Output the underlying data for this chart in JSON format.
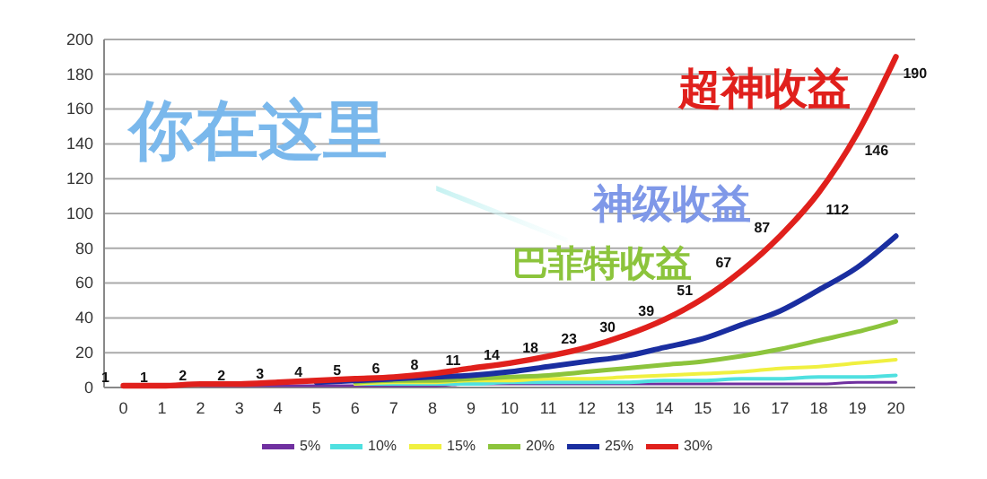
{
  "chart_data": {
    "type": "line",
    "x": [
      0,
      1,
      2,
      3,
      4,
      5,
      6,
      7,
      8,
      9,
      10,
      11,
      12,
      13,
      14,
      15,
      16,
      17,
      18,
      19,
      20
    ],
    "xlim": [
      -0.5,
      20.5
    ],
    "xticks": [
      0,
      1,
      2,
      3,
      4,
      5,
      6,
      7,
      8,
      9,
      10,
      11,
      12,
      13,
      14,
      15,
      16,
      17,
      18,
      19,
      20
    ],
    "ylim": [
      0,
      200
    ],
    "yticks": [
      0,
      20,
      40,
      60,
      80,
      100,
      120,
      140,
      160,
      180,
      200
    ],
    "grid": "y",
    "legend": "bottom",
    "marker": "none",
    "line_style": "solid",
    "series": [
      {
        "name": "5%",
        "color": "#7030a0",
        "values": [
          null,
          null,
          1,
          1,
          1,
          1,
          1,
          1,
          1,
          2,
          2,
          2,
          2,
          2,
          2,
          2,
          2,
          2,
          2,
          3,
          3
        ]
      },
      {
        "name": "10%",
        "color": "#4fe0e0",
        "values": [
          null,
          null,
          null,
          null,
          null,
          null,
          2,
          2,
          2,
          2,
          3,
          3,
          3,
          3,
          4,
          4,
          5,
          5,
          6,
          6,
          7
        ]
      },
      {
        "name": "15%",
        "color": "#f0f040",
        "values": [
          null,
          null,
          null,
          null,
          null,
          null,
          2,
          3,
          3,
          4,
          4,
          5,
          5,
          6,
          7,
          8,
          9,
          11,
          12,
          14,
          16
        ]
      },
      {
        "name": "20%",
        "color": "#8cc43c",
        "values": [
          null,
          null,
          null,
          null,
          null,
          null,
          3,
          4,
          4,
          5,
          6,
          7,
          9,
          11,
          13,
          15,
          18,
          22,
          27,
          32,
          38
        ]
      },
      {
        "name": "25%",
        "color": "#1a2ea0",
        "values": [
          null,
          null,
          null,
          null,
          null,
          3,
          4,
          5,
          6,
          7,
          9,
          12,
          15,
          18,
          23,
          28,
          36,
          44,
          56,
          69,
          87
        ]
      },
      {
        "name": "30%",
        "color": "#e0201c",
        "values": [
          1,
          1,
          2,
          2,
          3,
          4,
          5,
          6,
          8,
          11,
          14,
          18,
          23,
          30,
          39,
          51,
          67,
          87,
          112,
          146,
          190
        ],
        "data_labels": true
      }
    ],
    "annotations": [
      "你在这里",
      "超神收益",
      "神级收益",
      "巴菲特收益"
    ]
  }
}
